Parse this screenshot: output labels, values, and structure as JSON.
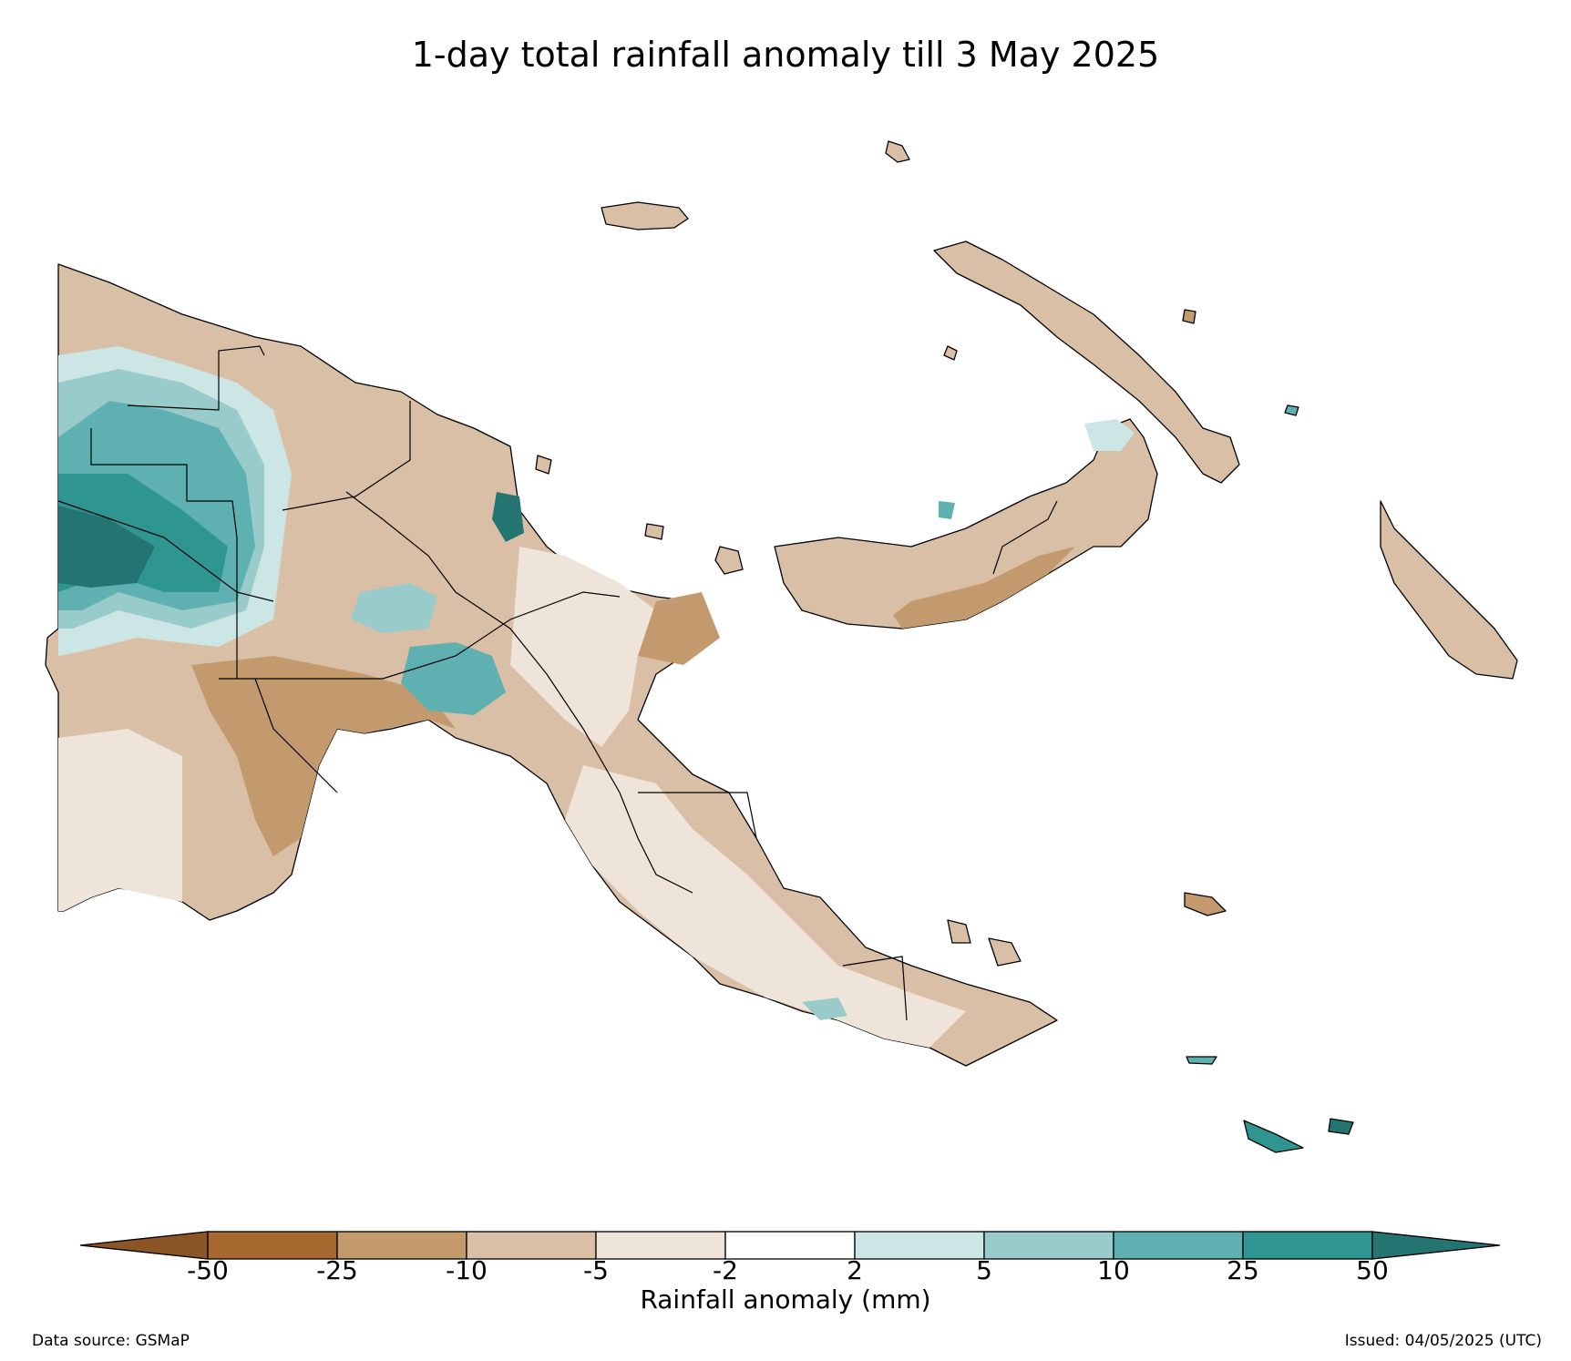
{
  "title": "1-day total rainfall anomaly till 3 May 2025",
  "colorbar": {
    "label": "Rainfall anomaly (mm)",
    "ticks": [
      "-50",
      "-25",
      "-10",
      "-5",
      "-2",
      "2",
      "5",
      "10",
      "25",
      "50"
    ],
    "colors": [
      "#a5692f",
      "#c29a6e",
      "#d9bfa5",
      "#efe4d9",
      "#ffffff",
      "#cce6e6",
      "#9acbcb",
      "#5fb0b0",
      "#2e9590",
      "#247471"
    ],
    "extend_low_color": "#8c5526",
    "extend_high_color": "#247471"
  },
  "legend_colors": {
    "dry_strong": "#c29a6e",
    "dry": "#d9bfa5",
    "dry_light": "#efe4d9",
    "neutral": "#ffffff",
    "wet_light": "#cce6e6",
    "wet": "#9acbcb",
    "wet_mid": "#5fb0b0",
    "wet_strong": "#2e9590",
    "wet_extreme": "#247471"
  },
  "footer": {
    "source": "Data source: GSMaP",
    "issued": "Issued: 04/05/2025 (UTC)"
  }
}
